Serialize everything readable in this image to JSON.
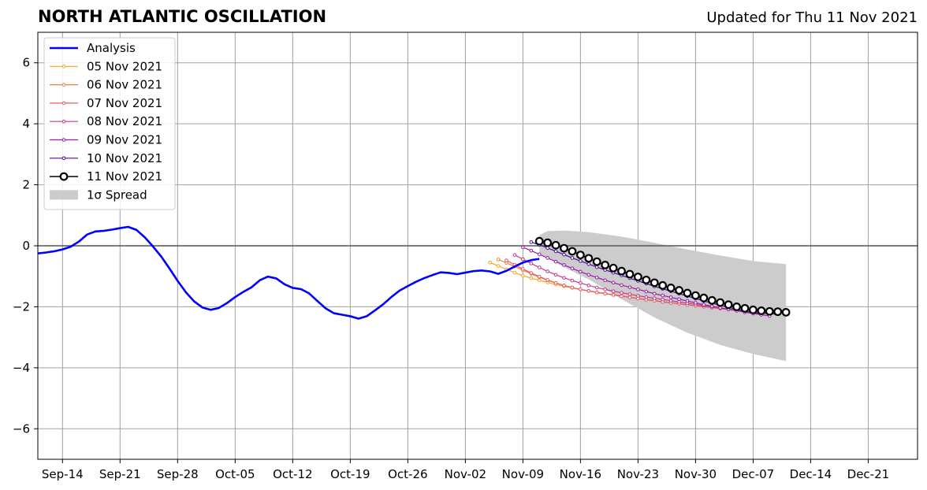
{
  "header": {
    "title": "NORTH ATLANTIC OSCILLATION",
    "updated": "Updated for Thu 11 Nov 2021"
  },
  "chart_data": {
    "type": "line",
    "title": "NORTH ATLANTIC OSCILLATION",
    "subtitle": "Updated for Thu 11 Nov 2021",
    "xlabel": "",
    "ylabel": "",
    "xlim": [
      "2021-09-11",
      "2021-12-27"
    ],
    "ylim": [
      -7,
      7
    ],
    "grid": true,
    "legend_position": "top-left",
    "x_ticks": [
      "2021-09-14",
      "2021-09-21",
      "2021-09-28",
      "2021-10-05",
      "2021-10-12",
      "2021-10-19",
      "2021-10-26",
      "2021-11-02",
      "2021-11-09",
      "2021-11-16",
      "2021-11-23",
      "2021-11-30",
      "2021-12-07",
      "2021-12-14",
      "2021-12-21"
    ],
    "x_tick_labels": [
      "Sep-14",
      "Sep-21",
      "Sep-28",
      "Oct-05",
      "Oct-12",
      "Oct-19",
      "Oct-26",
      "Nov-02",
      "Nov-09",
      "Nov-16",
      "Nov-23",
      "Nov-30",
      "Dec-07",
      "Dec-14",
      "Dec-21"
    ],
    "y_ticks": [
      -6,
      -4,
      -2,
      0,
      2,
      4,
      6
    ],
    "y_tick_labels": [
      "−6",
      "−4",
      "−2",
      "0",
      "2",
      "4",
      "6"
    ],
    "zero_line": 0,
    "analysis": {
      "name": "Analysis",
      "color": "#0000ff",
      "x": [
        "2021-09-11",
        "2021-09-12",
        "2021-09-13",
        "2021-09-14",
        "2021-09-15",
        "2021-09-16",
        "2021-09-17",
        "2021-09-18",
        "2021-09-19",
        "2021-09-20",
        "2021-09-21",
        "2021-09-22",
        "2021-09-23",
        "2021-09-24",
        "2021-09-25",
        "2021-09-26",
        "2021-09-27",
        "2021-09-28",
        "2021-09-29",
        "2021-09-30",
        "2021-10-01",
        "2021-10-02",
        "2021-10-03",
        "2021-10-04",
        "2021-10-05",
        "2021-10-06",
        "2021-10-07",
        "2021-10-08",
        "2021-10-09",
        "2021-10-10",
        "2021-10-11",
        "2021-10-12",
        "2021-10-13",
        "2021-10-14",
        "2021-10-15",
        "2021-10-16",
        "2021-10-17",
        "2021-10-18",
        "2021-10-19",
        "2021-10-20",
        "2021-10-21",
        "2021-10-22",
        "2021-10-23",
        "2021-10-24",
        "2021-10-25",
        "2021-10-26",
        "2021-10-27",
        "2021-10-28",
        "2021-10-29",
        "2021-10-30",
        "2021-10-31",
        "2021-11-01",
        "2021-11-02",
        "2021-11-03",
        "2021-11-04",
        "2021-11-05",
        "2021-11-06",
        "2021-11-07",
        "2021-11-08",
        "2021-11-09",
        "2021-11-10",
        "2021-11-11"
      ],
      "y": [
        -0.25,
        -0.22,
        -0.18,
        -0.12,
        -0.03,
        0.14,
        0.37,
        0.47,
        0.49,
        0.53,
        0.58,
        0.62,
        0.52,
        0.28,
        -0.02,
        -0.35,
        -0.74,
        -1.15,
        -1.52,
        -1.82,
        -2.02,
        -2.1,
        -2.04,
        -1.88,
        -1.68,
        -1.51,
        -1.36,
        -1.13,
        -1.01,
        -1.07,
        -1.26,
        -1.38,
        -1.42,
        -1.56,
        -1.81,
        -2.05,
        -2.21,
        -2.26,
        -2.31,
        -2.39,
        -2.31,
        -2.12,
        -1.92,
        -1.68,
        -1.47,
        -1.32,
        -1.18,
        -1.06,
        -0.96,
        -0.87,
        -0.89,
        -0.93,
        -0.88,
        -0.83,
        -0.81,
        -0.84,
        -0.92,
        -0.82,
        -0.68,
        -0.55,
        -0.47,
        -0.43
      ]
    },
    "forecasts": [
      {
        "name": "05 Nov 2021",
        "color": "#f5a623",
        "x": [
          "2021-11-05",
          "2021-11-06",
          "2021-11-07",
          "2021-11-08",
          "2021-11-09",
          "2021-11-10",
          "2021-11-11",
          "2021-11-12",
          "2021-11-13",
          "2021-11-14",
          "2021-11-15",
          "2021-11-16",
          "2021-11-17",
          "2021-11-18",
          "2021-11-19",
          "2021-11-20",
          "2021-11-21",
          "2021-11-22",
          "2021-11-23",
          "2021-11-24",
          "2021-11-25",
          "2021-11-26",
          "2021-11-27",
          "2021-11-28",
          "2021-11-29",
          "2021-11-30",
          "2021-12-01",
          "2021-12-02",
          "2021-12-03",
          "2021-12-04",
          "2021-12-05"
        ],
        "y": [
          -0.55,
          -0.66,
          -0.77,
          -0.88,
          -0.98,
          -1.06,
          -1.13,
          -1.2,
          -1.27,
          -1.33,
          -1.38,
          -1.43,
          -1.48,
          -1.52,
          -1.56,
          -1.6,
          -1.64,
          -1.68,
          -1.72,
          -1.76,
          -1.79,
          -1.83,
          -1.86,
          -1.89,
          -1.93,
          -1.96,
          -1.99,
          -2.02,
          -2.05,
          -2.08,
          -2.1
        ]
      },
      {
        "name": "06 Nov 2021",
        "color": "#f0803c",
        "x": [
          "2021-11-06",
          "2021-11-07",
          "2021-11-08",
          "2021-11-09",
          "2021-11-10",
          "2021-11-11",
          "2021-11-12",
          "2021-11-13",
          "2021-11-14",
          "2021-11-15",
          "2021-11-16",
          "2021-11-17",
          "2021-11-18",
          "2021-11-19",
          "2021-11-20",
          "2021-11-21",
          "2021-11-22",
          "2021-11-23",
          "2021-11-24",
          "2021-11-25",
          "2021-11-26",
          "2021-11-27",
          "2021-11-28",
          "2021-11-29",
          "2021-11-30",
          "2021-12-01",
          "2021-12-02",
          "2021-12-03",
          "2021-12-04",
          "2021-12-05",
          "2021-12-06"
        ],
        "y": [
          -0.45,
          -0.56,
          -0.68,
          -0.8,
          -0.92,
          -1.03,
          -1.13,
          -1.22,
          -1.3,
          -1.37,
          -1.43,
          -1.48,
          -1.53,
          -1.57,
          -1.61,
          -1.65,
          -1.69,
          -1.73,
          -1.77,
          -1.8,
          -1.84,
          -1.87,
          -1.9,
          -1.93,
          -1.96,
          -1.99,
          -2.02,
          -2.05,
          -2.08,
          -2.1,
          -2.12
        ]
      },
      {
        "name": "07 Nov 2021",
        "color": "#e05c6c",
        "x": [
          "2021-11-07",
          "2021-11-08",
          "2021-11-09",
          "2021-11-10",
          "2021-11-11",
          "2021-11-12",
          "2021-11-13",
          "2021-11-14",
          "2021-11-15",
          "2021-11-16",
          "2021-11-17",
          "2021-11-18",
          "2021-11-19",
          "2021-11-20",
          "2021-11-21",
          "2021-11-22",
          "2021-11-23",
          "2021-11-24",
          "2021-11-25",
          "2021-11-26",
          "2021-11-27",
          "2021-11-28",
          "2021-11-29",
          "2021-11-30",
          "2021-12-01",
          "2021-12-02",
          "2021-12-03",
          "2021-12-04",
          "2021-12-05",
          "2021-12-06",
          "2021-12-07"
        ],
        "y": [
          -0.48,
          -0.62,
          -0.76,
          -0.89,
          -1.01,
          -1.12,
          -1.22,
          -1.3,
          -1.37,
          -1.43,
          -1.48,
          -1.53,
          -1.57,
          -1.61,
          -1.65,
          -1.69,
          -1.73,
          -1.77,
          -1.8,
          -1.84,
          -1.87,
          -1.9,
          -1.94,
          -1.97,
          -2.0,
          -2.03,
          -2.06,
          -2.09,
          -2.12,
          -2.15,
          -2.18
        ]
      },
      {
        "name": "08 Nov 2021",
        "color": "#c03890",
        "x": [
          "2021-11-08",
          "2021-11-09",
          "2021-11-10",
          "2021-11-11",
          "2021-11-12",
          "2021-11-13",
          "2021-11-14",
          "2021-11-15",
          "2021-11-16",
          "2021-11-17",
          "2021-11-18",
          "2021-11-19",
          "2021-11-20",
          "2021-11-21",
          "2021-11-22",
          "2021-11-23",
          "2021-11-24",
          "2021-11-25",
          "2021-11-26",
          "2021-11-27",
          "2021-11-28",
          "2021-11-29",
          "2021-11-30",
          "2021-12-01",
          "2021-12-02",
          "2021-12-03",
          "2021-12-04",
          "2021-12-05",
          "2021-12-06",
          "2021-12-07",
          "2021-12-08"
        ],
        "y": [
          -0.3,
          -0.44,
          -0.58,
          -0.71,
          -0.84,
          -0.95,
          -1.05,
          -1.14,
          -1.22,
          -1.3,
          -1.37,
          -1.43,
          -1.49,
          -1.54,
          -1.59,
          -1.64,
          -1.68,
          -1.72,
          -1.76,
          -1.8,
          -1.84,
          -1.88,
          -1.92,
          -1.96,
          -2.0,
          -2.04,
          -2.08,
          -2.12,
          -2.16,
          -2.2,
          -2.24
        ]
      },
      {
        "name": "09 Nov 2021",
        "color": "#9a1aa8",
        "x": [
          "2021-11-09",
          "2021-11-10",
          "2021-11-11",
          "2021-11-12",
          "2021-11-13",
          "2021-11-14",
          "2021-11-15",
          "2021-11-16",
          "2021-11-17",
          "2021-11-18",
          "2021-11-19",
          "2021-11-20",
          "2021-11-21",
          "2021-11-22",
          "2021-11-23",
          "2021-11-24",
          "2021-11-25",
          "2021-11-26",
          "2021-11-27",
          "2021-11-28",
          "2021-11-29",
          "2021-11-30",
          "2021-12-01",
          "2021-12-02",
          "2021-12-03",
          "2021-12-04",
          "2021-12-05",
          "2021-12-06",
          "2021-12-07",
          "2021-12-08",
          "2021-12-09"
        ],
        "y": [
          -0.05,
          -0.16,
          -0.28,
          -0.4,
          -0.52,
          -0.63,
          -0.74,
          -0.85,
          -0.95,
          -1.04,
          -1.13,
          -1.21,
          -1.29,
          -1.36,
          -1.43,
          -1.5,
          -1.57,
          -1.63,
          -1.69,
          -1.75,
          -1.81,
          -1.87,
          -1.93,
          -1.98,
          -2.03,
          -2.08,
          -2.13,
          -2.18,
          -2.22,
          -2.26,
          -2.3
        ]
      },
      {
        "name": "10 Nov 2021",
        "color": "#4b0c9c",
        "x": [
          "2021-11-10",
          "2021-11-11",
          "2021-11-12",
          "2021-11-13",
          "2021-11-14",
          "2021-11-15",
          "2021-11-16",
          "2021-11-17",
          "2021-11-18",
          "2021-11-19",
          "2021-11-20",
          "2021-11-21",
          "2021-11-22",
          "2021-11-23",
          "2021-11-24",
          "2021-11-25",
          "2021-11-26",
          "2021-11-27",
          "2021-11-28",
          "2021-11-29",
          "2021-11-30",
          "2021-12-01",
          "2021-12-02",
          "2021-12-03",
          "2021-12-04",
          "2021-12-05",
          "2021-12-06",
          "2021-12-07",
          "2021-12-08",
          "2021-12-09",
          "2021-12-10"
        ],
        "y": [
          0.12,
          0.03,
          -0.07,
          -0.18,
          -0.29,
          -0.4,
          -0.5,
          -0.6,
          -0.7,
          -0.79,
          -0.88,
          -0.97,
          -1.06,
          -1.15,
          -1.24,
          -1.33,
          -1.41,
          -1.49,
          -1.57,
          -1.65,
          -1.73,
          -1.81,
          -1.88,
          -1.95,
          -2.02,
          -2.08,
          -2.14,
          -2.18,
          -2.21,
          -2.23,
          -2.24
        ]
      }
    ],
    "latest_forecast": {
      "name": "11 Nov 2021",
      "color": "#000000",
      "marker": "open-circle",
      "x": [
        "2021-11-11",
        "2021-11-12",
        "2021-11-13",
        "2021-11-14",
        "2021-11-15",
        "2021-11-16",
        "2021-11-17",
        "2021-11-18",
        "2021-11-19",
        "2021-11-20",
        "2021-11-21",
        "2021-11-22",
        "2021-11-23",
        "2021-11-24",
        "2021-11-25",
        "2021-11-26",
        "2021-11-27",
        "2021-11-28",
        "2021-11-29",
        "2021-11-30",
        "2021-12-01",
        "2021-12-02",
        "2021-12-03",
        "2021-12-04",
        "2021-12-05",
        "2021-12-06",
        "2021-12-07",
        "2021-12-08",
        "2021-12-09",
        "2021-12-10",
        "2021-12-11"
      ],
      "y": [
        0.15,
        0.1,
        0.02,
        -0.08,
        -0.18,
        -0.3,
        -0.41,
        -0.52,
        -0.63,
        -0.73,
        -0.83,
        -0.93,
        -1.02,
        -1.12,
        -1.21,
        -1.3,
        -1.38,
        -1.46,
        -1.55,
        -1.63,
        -1.71,
        -1.79,
        -1.86,
        -1.93,
        -2.0,
        -2.05,
        -2.1,
        -2.13,
        -2.15,
        -2.16,
        -2.18
      ]
    },
    "spread": {
      "name": "1σ Spread",
      "color": "#cccccc",
      "x": [
        "2021-11-11",
        "2021-11-12",
        "2021-11-14",
        "2021-11-17",
        "2021-11-21",
        "2021-11-25",
        "2021-11-29",
        "2021-12-03",
        "2021-12-07",
        "2021-12-11"
      ],
      "upper": [
        0.35,
        0.48,
        0.5,
        0.45,
        0.3,
        0.1,
        -0.12,
        -0.32,
        -0.5,
        -0.6
      ],
      "lower": [
        -0.25,
        -0.4,
        -0.7,
        -1.1,
        -1.75,
        -2.35,
        -2.85,
        -3.25,
        -3.55,
        -3.78
      ]
    }
  },
  "legend": {
    "items": [
      {
        "label": "Analysis",
        "kind": "analysis"
      },
      {
        "label": "05 Nov 2021",
        "kind": "forecast",
        "index": 0
      },
      {
        "label": "06 Nov 2021",
        "kind": "forecast",
        "index": 1
      },
      {
        "label": "07 Nov 2021",
        "kind": "forecast",
        "index": 2
      },
      {
        "label": "08 Nov 2021",
        "kind": "forecast",
        "index": 3
      },
      {
        "label": "09 Nov 2021",
        "kind": "forecast",
        "index": 4
      },
      {
        "label": "10 Nov 2021",
        "kind": "forecast",
        "index": 5
      },
      {
        "label": "11 Nov 2021",
        "kind": "latest"
      },
      {
        "label": "1σ Spread",
        "kind": "spread"
      }
    ]
  }
}
